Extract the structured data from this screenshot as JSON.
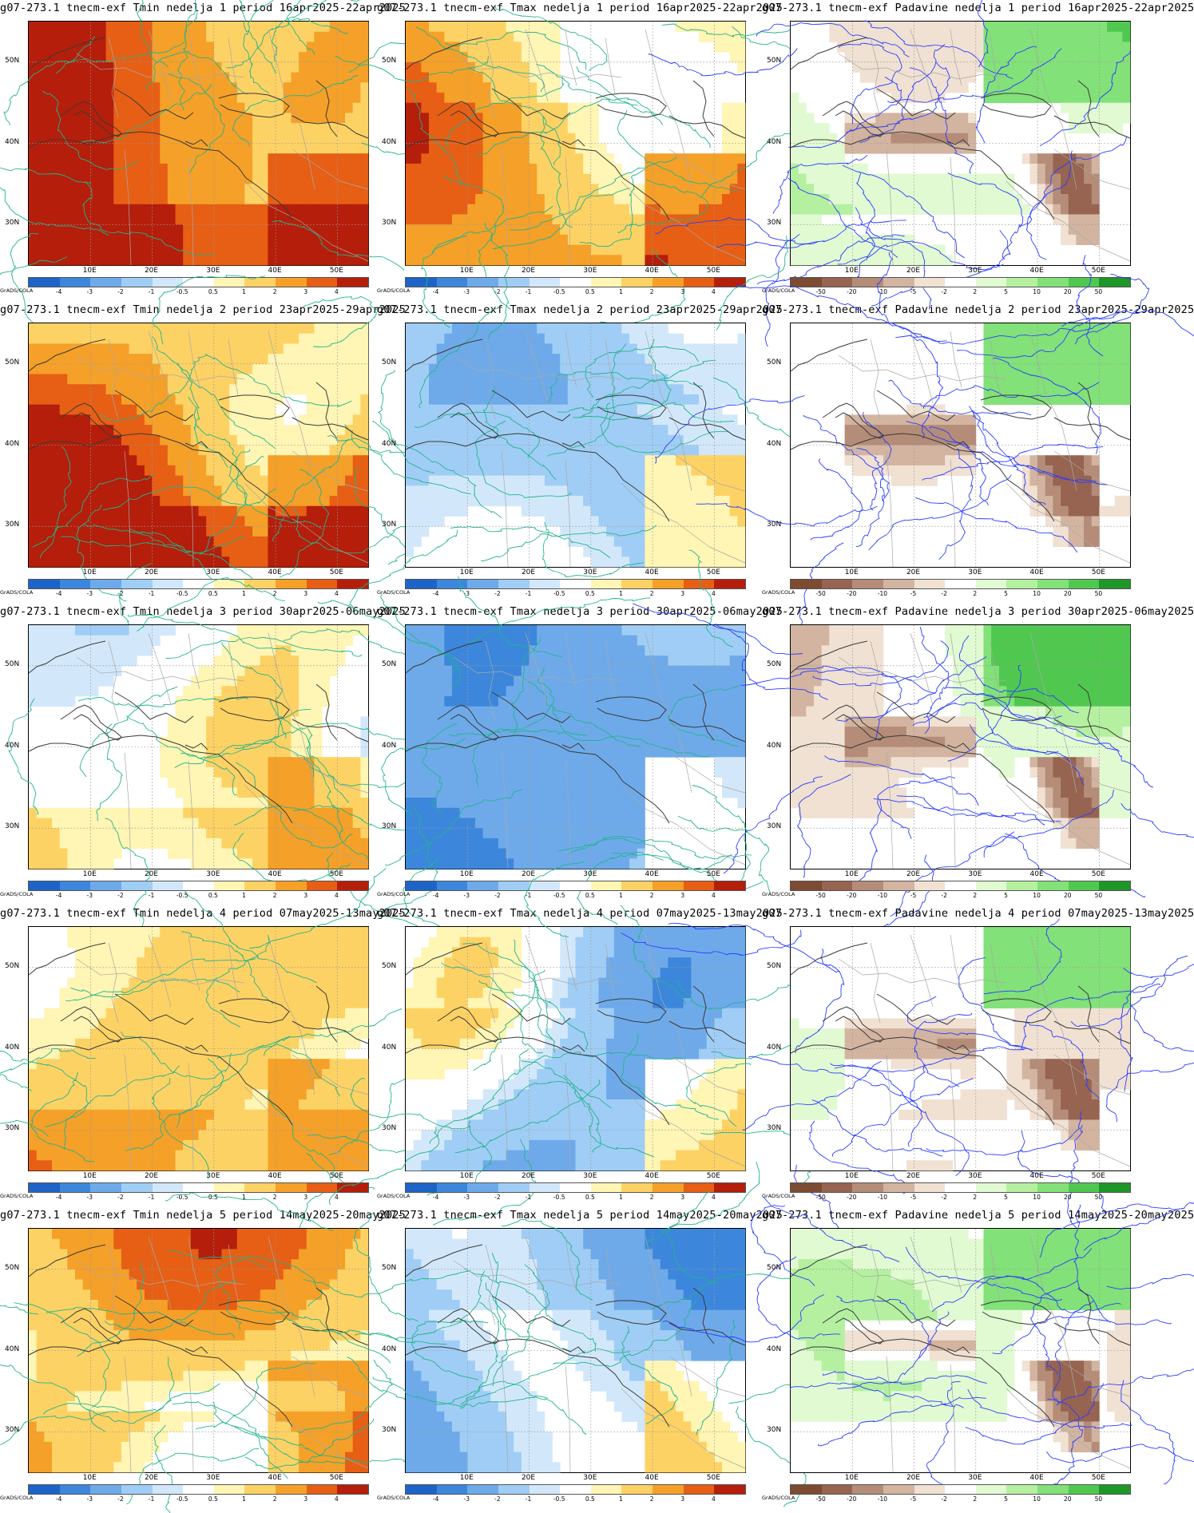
{
  "rows": [
    {
      "week": 1,
      "panels": [
        {
          "title": "g07-273.1 tnecm-exf Tmin nedelja 1 period 16apr2025-22apr2025",
          "type": "tmin",
          "seed": 11,
          "warm": 0.85
        },
        {
          "title": "g07-273.1 tnecm-exf Tmax nedelja 1 period 16apr2025-22apr2025",
          "type": "tmax",
          "seed": 12,
          "warm": 0.45
        },
        {
          "title": "g07-273.1 tnecm-exf Padavine nedelja 1 period 16apr2025-22apr2025",
          "type": "precip",
          "seed": 13,
          "warm": 0.4
        }
      ]
    },
    {
      "week": 2,
      "panels": [
        {
          "title": "g07-273.1 tnecm-exf Tmin nedelja 2 period 23apr2025-29apr2025",
          "type": "tmin",
          "seed": 21,
          "warm": 0.75
        },
        {
          "title": "g07-273.1 tnecm-exf Tmax nedelja 2 period 23apr2025-29apr2025",
          "type": "tmax",
          "seed": 22,
          "warm": -0.1
        },
        {
          "title": "g07-273.1 tnecm-exf Padavine nedelja 2 period 23apr2025-29apr2025",
          "type": "precip",
          "seed": 23,
          "warm": 0.1
        }
      ]
    },
    {
      "week": 3,
      "panels": [
        {
          "title": "g07-273.1 tnecm-exf Tmin nedelja 3 period 30apr2025-06may2025",
          "type": "tmin",
          "seed": 31,
          "warm": 0.1
        },
        {
          "title": "g07-273.1 tnecm-exf Tmax nedelja 3 period 30apr2025-06may2025",
          "type": "tmax",
          "seed": 32,
          "warm": -0.55
        },
        {
          "title": "g07-273.1 tnecm-exf Padavine nedelja 3 period 30apr2025-06may2025",
          "type": "precip",
          "seed": 33,
          "warm": 0.0
        }
      ]
    },
    {
      "week": 4,
      "panels": [
        {
          "title": "g07-273.1 tnecm-exf Tmin nedelja 4 period 07may2025-13may2025",
          "type": "tmin",
          "seed": 41,
          "warm": 0.35
        },
        {
          "title": "g07-273.1 tnecm-exf Tmax nedelja 4 period 07may2025-13may2025",
          "type": "tmax",
          "seed": 42,
          "warm": -0.35
        },
        {
          "title": "g07-273.1 tnecm-exf Padavine nedelja 4 period 07may2025-13may2025",
          "type": "precip",
          "seed": 43,
          "warm": 0.1
        }
      ]
    },
    {
      "week": 5,
      "panels": [
        {
          "title": "g07-273.1 tnecm-exf Tmin nedelja 5 period 14may2025-20may2025",
          "type": "tmin",
          "seed": 51,
          "warm": 0.45
        },
        {
          "title": "g07-273.1 tnecm-exf Tmax nedelja 5 period 14may2025-20may2025",
          "type": "tmax",
          "seed": 52,
          "warm": -0.5
        },
        {
          "title": "g07-273.1 tnecm-exf Padavine nedelja 5 period 14may2025-20may2025",
          "type": "precip",
          "seed": 53,
          "warm": -0.2
        }
      ]
    }
  ],
  "axes": {
    "lat_labels": [
      "50N",
      "40N",
      "30N"
    ],
    "lon_labels": [
      "10E",
      "20E",
      "30E",
      "40E",
      "50E"
    ],
    "lat_range": [
      25,
      55
    ],
    "lon_range": [
      0,
      55
    ]
  },
  "colorbars": {
    "temperature": {
      "ticks": [
        "-4",
        "-3",
        "-2",
        "-1",
        "-0.5",
        "0.5",
        "1",
        "2",
        "3",
        "4"
      ],
      "colors": [
        "#1e64c8",
        "#3c87dc",
        "#6eaaea",
        "#a0cdf5",
        "#d2e8fa",
        "#ffffff",
        "#fff5b4",
        "#fdd264",
        "#f5a028",
        "#e65f14",
        "#b41e0a"
      ]
    },
    "precip": {
      "ticks": [
        "-50",
        "-20",
        "-10",
        "-5",
        "-2",
        "2",
        "5",
        "10",
        "20",
        "50"
      ],
      "colors": [
        "#7d4b32",
        "#966450",
        "#b48c78",
        "#d2b4a0",
        "#f0e1d2",
        "#ffffff",
        "#e1fad2",
        "#b4f0a0",
        "#82e178",
        "#50c850",
        "#1e9628"
      ]
    }
  },
  "grads_label": "GrADS/COLA"
}
